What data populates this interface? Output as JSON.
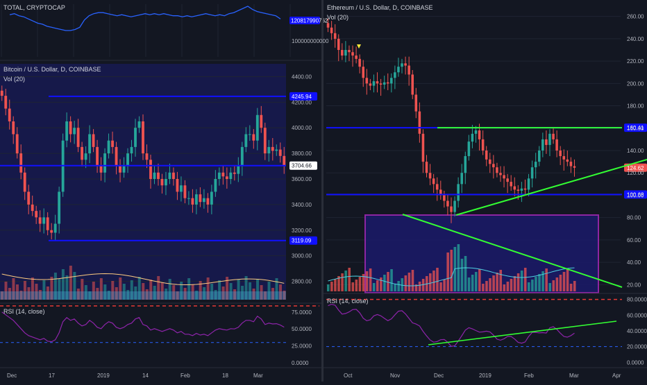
{
  "colors": {
    "background": "#131722",
    "grid": "#1f2433",
    "divider": "#2a2e39",
    "candle_up": "#26a69a",
    "candle_down": "#ef5350",
    "level_line": "#1010ff",
    "trend_line": "#33ff33",
    "rsi_line": "#8e24aa",
    "highlight_box_fill": "#1a1a66",
    "highlight_box_stroke": "#9c27b0",
    "dashed_red": "#e53935",
    "dashed_blue": "#2962ff",
    "ma_line": "#ffcc80",
    "vol_ma_line": "#4dd0e1",
    "axis_text": "#b2b5be"
  },
  "panels": {
    "total": {
      "title": "TOTAL, CRYPTOCAP",
      "price_label": "120817990762"
    },
    "btc": {
      "title": "Bitcoin / U.S. Dollar, D, COINBASE",
      "vol_label": "Vol (20)"
    },
    "btc_rsi": {
      "title": "RSI (14, close)"
    },
    "eth": {
      "title": "Ethereum / U.S. Dollar, D, COINBASE",
      "vol_label": "Vol (20)"
    },
    "eth_rsi": {
      "title": "RSI (14, close)"
    }
  },
  "chart_data": [
    {
      "type": "line",
      "title": "TOTAL, CRYPTOCAP",
      "y_ticks": [
        "100000000000"
      ],
      "last_value_label": "120817990762",
      "ylim": [
        85000000000,
        135000000000
      ],
      "y_tick_values": [
        100000000000
      ],
      "values": [
        125,
        126,
        124,
        123,
        121,
        119,
        117,
        116,
        114,
        113,
        112,
        111,
        110,
        110,
        111,
        113,
        120,
        124,
        126,
        127,
        127,
        126,
        125,
        124,
        125,
        124,
        123,
        124,
        125,
        126,
        125,
        126,
        125,
        126,
        125,
        124,
        124,
        123,
        124,
        123,
        124,
        125,
        126,
        125,
        124,
        125,
        124,
        126,
        127,
        129,
        131,
        133,
        130,
        128,
        127,
        126,
        125,
        124,
        121
      ]
    },
    {
      "type": "candlestick",
      "title": "Bitcoin / U.S. Dollar, D, COINBASE",
      "x_tick_labels": [
        "Dec",
        "17",
        "2019",
        "14",
        "Feb",
        "18",
        "Mar"
      ],
      "y_tick_labels": [
        "4400.00",
        "4200.00",
        "4000.00",
        "3800.00",
        "3600.00",
        "3400.00",
        "3200.00",
        "3000.00",
        "2800.00"
      ],
      "y_tick_values": [
        4400,
        4200,
        4000,
        3800,
        3600,
        3400,
        3200,
        3000,
        2800
      ],
      "ylim": [
        2700,
        4500
      ],
      "horizontal_levels": [
        {
          "label": "4245.94",
          "value": 4245.94
        },
        {
          "label": "3704.66",
          "value": 3704.66
        },
        {
          "label": "3119.09",
          "value": 3119.09
        }
      ],
      "close": [
        4250,
        4150,
        4050,
        3950,
        3800,
        3650,
        3500,
        3400,
        3350,
        3300,
        3250,
        3300,
        3200,
        3180,
        3250,
        3500,
        3900,
        4050,
        3950,
        4000,
        3850,
        3750,
        3800,
        3950,
        3850,
        3700,
        3650,
        3800,
        3900,
        3850,
        3700,
        3650,
        3700,
        3800,
        3850,
        4000,
        4050,
        3800,
        3750,
        3600,
        3650,
        3600,
        3550,
        3600,
        3650,
        3600,
        3500,
        3550,
        3450,
        3450,
        3400,
        3480,
        3420,
        3450,
        3400,
        3500,
        3600,
        3650,
        3620,
        3600,
        3650,
        3640,
        3700,
        3850,
        3950,
        3950,
        3900,
        4100,
        4000,
        3800,
        3850,
        3820,
        3830,
        3780,
        3704
      ]
    },
    {
      "type": "line",
      "title": "RSI (14, close)",
      "y_tick_labels": [
        "75.0000",
        "50.0000",
        "25.0000",
        "0.0000"
      ],
      "y_tick_values": [
        75,
        50,
        25,
        0
      ],
      "ylim": [
        -5,
        85
      ],
      "bands": [
        70,
        30
      ]
    },
    {
      "type": "candlestick",
      "title": "Ethereum / U.S. Dollar, D, COINBASE",
      "x_tick_labels": [
        "Oct",
        "Nov",
        "Dec",
        "2019",
        "Feb",
        "Mar",
        "Apr"
      ],
      "y_tick_labels": [
        "260.00",
        "240.00",
        "220.00",
        "200.00",
        "180.00",
        "160.00",
        "140.00",
        "120.00",
        "100.00",
        "80.00",
        "60.00",
        "40.00",
        "20.00"
      ],
      "y_tick_values": [
        260,
        240,
        220,
        200,
        180,
        160,
        140,
        120,
        100,
        80,
        60,
        40,
        20
      ],
      "ylim": [
        14,
        266
      ],
      "horizontal_levels": [
        {
          "label": "160.41",
          "value": 160.41
        },
        {
          "label": "124.62",
          "value": 124.62
        },
        {
          "label": "100.68",
          "value": 100.68
        }
      ],
      "close": [
        250,
        245,
        240,
        230,
        225,
        230,
        228,
        225,
        222,
        215,
        205,
        200,
        198,
        202,
        200,
        199,
        201,
        200,
        205,
        210,
        215,
        218,
        216,
        208,
        190,
        175,
        155,
        130,
        120,
        115,
        110,
        105,
        100,
        95,
        90,
        85,
        95,
        110,
        120,
        135,
        148,
        155,
        158,
        150,
        140,
        132,
        128,
        125,
        120,
        118,
        115,
        112,
        108,
        105,
        104,
        106,
        105,
        115,
        125,
        130,
        140,
        150,
        145,
        155,
        150,
        140,
        135,
        132,
        130,
        126,
        124.6
      ]
    },
    {
      "type": "line",
      "title": "RSI (14, close)",
      "y_tick_labels": [
        "80.0000",
        "60.0000",
        "40.0000",
        "20.0000",
        "0.0000"
      ],
      "y_tick_values": [
        80,
        60,
        40,
        20,
        0
      ],
      "ylim": [
        -5,
        85
      ],
      "bands": [
        80,
        20
      ]
    }
  ]
}
